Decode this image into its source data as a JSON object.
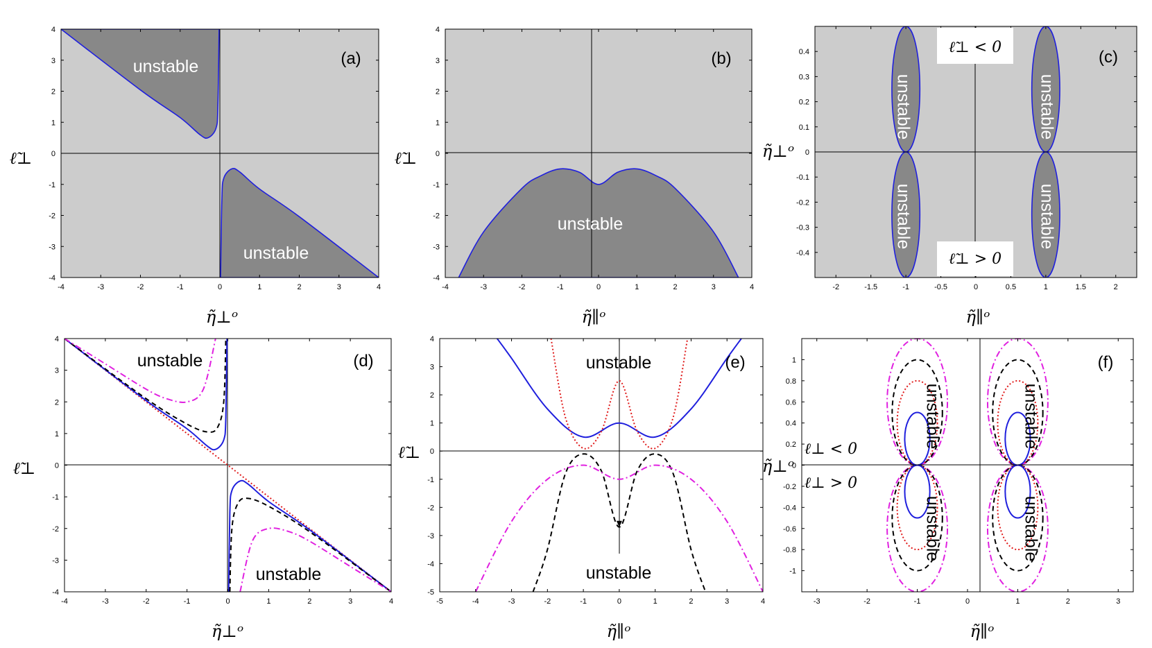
{
  "labels": {
    "unstable": "unstable",
    "x_perp": "η̃⊥ᵒ",
    "x_par": "η̃∥ᵒ",
    "y_ell": "ℓ̃⊥",
    "y_eta_perp": "η̃⊥ᵒ",
    "c_upper": "ℓ̃⊥ < 0",
    "c_lower": "ℓ̃⊥ > 0",
    "f_upper": "ℓ⊥ < 0",
    "f_lower": "ℓ⊥ > 0"
  },
  "colors": {
    "stable_fill": "#cccccc",
    "unstable_fill": "#888888",
    "blue": "#1f1fdd",
    "red": "#e01b1b",
    "black": "#000000",
    "magenta": "#e020e0"
  },
  "chart_data": [
    {
      "panel": "(a)",
      "type": "area",
      "xlabel": "η̃⊥ᵒ",
      "ylabel": "ℓ̃⊥",
      "xlim": [
        -4,
        4
      ],
      "ylim": [
        -4,
        4
      ],
      "xticks": [
        -4,
        -3,
        -2,
        -1,
        0,
        1,
        2,
        3,
        4
      ],
      "yticks": [
        -4,
        -3,
        -2,
        -1,
        0,
        1,
        2,
        3,
        4
      ],
      "regions": [
        {
          "label": "unstable",
          "boundary": [
            [
              -4,
              4
            ],
            [
              -2,
              2.04
            ],
            [
              -1,
              1.15
            ],
            [
              -0.5,
              0.6
            ],
            [
              -0.3,
              0.5
            ],
            [
              -0.1,
              0.8
            ],
            [
              -0.05,
              1.5
            ],
            [
              -0.02,
              4
            ]
          ]
        },
        {
          "label": "unstable",
          "boundary": [
            [
              0.02,
              -4
            ],
            [
              0.05,
              -1.5
            ],
            [
              0.1,
              -0.8
            ],
            [
              0.3,
              -0.5
            ],
            [
              0.5,
              -0.6
            ],
            [
              1,
              -1.15
            ],
            [
              2,
              -2.04
            ],
            [
              4,
              -4
            ]
          ]
        }
      ]
    },
    {
      "panel": "(b)",
      "type": "area",
      "xlabel": "η̃∥ᵒ",
      "ylabel": "ℓ̃⊥",
      "xlim": [
        -4,
        4
      ],
      "ylim": [
        -4,
        4
      ],
      "xticks": [
        -4,
        -3,
        -2,
        -1,
        0,
        1,
        2,
        3,
        4
      ],
      "yticks": [
        -4,
        -3,
        -2,
        -1,
        0,
        1,
        2,
        3,
        4
      ],
      "regions": [
        {
          "label": "unstable",
          "boundary": [
            [
              -3.65,
              -4
            ],
            [
              -3,
              -2.53
            ],
            [
              -2,
              -1.13
            ],
            [
              -1.5,
              -0.72
            ],
            [
              -1,
              -0.5
            ],
            [
              -0.5,
              -0.61
            ],
            [
              0,
              -1
            ],
            [
              0.5,
              -0.61
            ],
            [
              1,
              -0.5
            ],
            [
              1.5,
              -0.72
            ],
            [
              2,
              -1.13
            ],
            [
              3,
              -2.53
            ],
            [
              3.65,
              -4
            ]
          ]
        }
      ]
    },
    {
      "panel": "(c)",
      "type": "area",
      "xlabel": "η̃∥ᵒ",
      "ylabel": "η̃⊥ᵒ",
      "xlim": [
        -2.3,
        2.3
      ],
      "ylim": [
        -0.5,
        0.5
      ],
      "xticks": [
        -2,
        -1.5,
        -1,
        -0.5,
        0,
        0.5,
        1,
        1.5,
        2
      ],
      "yticks": [
        -0.4,
        -0.3,
        -0.2,
        -0.1,
        0,
        0.1,
        0.2,
        0.3,
        0.4
      ],
      "regions": [
        {
          "label": "unstable",
          "center": [
            -1,
            0.25
          ],
          "radius": [
            0.25,
            0.25
          ]
        },
        {
          "label": "unstable",
          "center": [
            1,
            0.25
          ],
          "radius": [
            0.25,
            0.25
          ]
        },
        {
          "label": "unstable",
          "center": [
            -1,
            -0.25
          ],
          "radius": [
            0.25,
            0.25
          ]
        },
        {
          "label": "unstable",
          "center": [
            1,
            -0.25
          ],
          "radius": [
            0.25,
            0.25
          ]
        }
      ]
    },
    {
      "panel": "(d)",
      "type": "line",
      "xlabel": "η̃⊥ᵒ",
      "ylabel": "ℓ̃⊥",
      "xlim": [
        -4,
        4
      ],
      "ylim": [
        -4,
        4
      ],
      "xticks": [
        -4,
        -3,
        -2,
        -1,
        0,
        1,
        2,
        3,
        4
      ],
      "yticks": [
        -4,
        -3,
        -2,
        -1,
        0,
        1,
        2,
        3,
        4
      ],
      "series": [
        {
          "style": "red-dotted",
          "x": [
            -4,
            4
          ],
          "y": [
            4,
            -4
          ]
        },
        {
          "style": "blue-solid",
          "x": [
            -4,
            -2,
            -1,
            -0.5,
            -0.3,
            -0.1,
            -0.05,
            -0.02
          ],
          "y": [
            4,
            2.04,
            1.15,
            0.6,
            0.5,
            0.8,
            1.5,
            4
          ]
        },
        {
          "style": "blue-solid",
          "x": [
            0.02,
            0.05,
            0.1,
            0.3,
            0.5,
            1,
            2,
            4
          ],
          "y": [
            -4,
            -1.5,
            -0.8,
            -0.5,
            -0.6,
            -1.15,
            -2.04,
            -4
          ]
        },
        {
          "style": "black-dashed",
          "x": [
            -4,
            -2,
            -1,
            -0.5,
            -0.25,
            -0.1,
            -0.05
          ],
          "y": [
            4,
            2.1,
            1.3,
            1.05,
            1.2,
            2,
            4
          ]
        },
        {
          "style": "black-dashed",
          "x": [
            0.05,
            0.1,
            0.25,
            0.5,
            1,
            2,
            4
          ],
          "y": [
            -4,
            -2,
            -1.2,
            -1.05,
            -1.3,
            -2.1,
            -4
          ]
        },
        {
          "style": "magenta-dashdot",
          "x": [
            -4,
            -3,
            -2,
            -1.5,
            -1,
            -0.6,
            -0.3
          ],
          "y": [
            4,
            3.2,
            2.4,
            2.1,
            2.0,
            2.4,
            4
          ]
        },
        {
          "style": "magenta-dashdot",
          "x": [
            0.3,
            0.6,
            1,
            1.5,
            2,
            3,
            4
          ],
          "y": [
            -4,
            -2.4,
            -2.0,
            -2.1,
            -2.4,
            -3.2,
            -4
          ]
        }
      ],
      "annotations": [
        "unstable",
        "unstable"
      ]
    },
    {
      "panel": "(e)",
      "type": "line",
      "xlabel": "η̃∥ᵒ",
      "ylabel": "ℓ̃⊥",
      "xlim": [
        -5,
        4
      ],
      "ylim": [
        -5,
        4
      ],
      "xticks": [
        -5,
        -4,
        -3,
        -2,
        -1,
        0,
        1,
        2,
        3,
        4
      ],
      "yticks": [
        -5,
        -4,
        -3,
        -2,
        -1,
        0,
        1,
        2,
        3,
        4
      ],
      "series": [
        {
          "style": "blue-solid",
          "x": [
            -3.4,
            -3,
            -2,
            -1,
            0,
            1,
            2,
            3,
            3.4
          ],
          "y": [
            4,
            3.3,
            1.5,
            0.5,
            1,
            0.5,
            1.5,
            3.3,
            4
          ]
        },
        {
          "style": "red-dotted",
          "x": [
            -1.9,
            -1.5,
            -1,
            -0.5,
            0,
            0.5,
            1,
            1.5,
            1.9
          ],
          "y": [
            4,
            1.2,
            0.1,
            0.7,
            2.5,
            0.7,
            0.1,
            1.2,
            4
          ]
        },
        {
          "style": "black-dashed",
          "x": [
            -2.4,
            -2,
            -1.5,
            -1,
            -0.5,
            0,
            0.5,
            1,
            1.5,
            2,
            2.4
          ],
          "y": [
            -5,
            -3.5,
            -0.8,
            -0.1,
            -0.7,
            -2.7,
            -0.7,
            -0.1,
            -0.8,
            -3.5,
            -5
          ]
        },
        {
          "style": "magenta-dashdot",
          "x": [
            -4,
            -3,
            -2,
            -1,
            0,
            1,
            2,
            3,
            4
          ],
          "y": [
            -5,
            -2.5,
            -1,
            -0.5,
            -1,
            -0.5,
            -1,
            -2.5,
            -5
          ]
        }
      ],
      "annotations": [
        "unstable",
        "unstable"
      ]
    },
    {
      "panel": "(f)",
      "type": "line",
      "xlabel": "η̃∥ᵒ",
      "ylabel": "η̃⊥ᵒ",
      "xlim": [
        -3.3,
        3.3
      ],
      "ylim": [
        -1.2,
        1.2
      ],
      "xticks": [
        -3,
        -2,
        -1,
        0,
        1,
        2,
        3
      ],
      "yticks": [
        -1,
        -0.8,
        -0.6,
        -0.4,
        -0.2,
        0,
        0.2,
        0.4,
        0.6,
        0.8,
        1
      ],
      "series": [
        {
          "style": "blue-solid",
          "shape": "circles",
          "centers": [
            [
              -1,
              0.25
            ],
            [
              1,
              0.25
            ],
            [
              -1,
              -0.25
            ],
            [
              1,
              -0.25
            ]
          ],
          "radius": 0.25
        },
        {
          "style": "red-dotted",
          "shape": "circles",
          "centers": [
            [
              -1,
              0.4
            ],
            [
              1,
              0.4
            ],
            [
              -1,
              -0.4
            ],
            [
              1,
              -0.4
            ]
          ],
          "radius": 0.4
        },
        {
          "style": "black-dashed",
          "shape": "circles",
          "centers": [
            [
              -1,
              0.5
            ],
            [
              1,
              0.5
            ],
            [
              -1,
              -0.5
            ],
            [
              1,
              -0.5
            ]
          ],
          "radius": 0.5
        },
        {
          "style": "magenta-dashdot",
          "shape": "circles",
          "centers": [
            [
              -1,
              0.6
            ],
            [
              1,
              0.6
            ],
            [
              -1,
              -0.6
            ],
            [
              1,
              -0.6
            ]
          ],
          "radius": 0.6
        }
      ],
      "annotations": [
        "unstable",
        "unstable",
        "unstable",
        "unstable",
        "ℓ⊥ < 0",
        "ℓ⊥ > 0"
      ]
    }
  ]
}
